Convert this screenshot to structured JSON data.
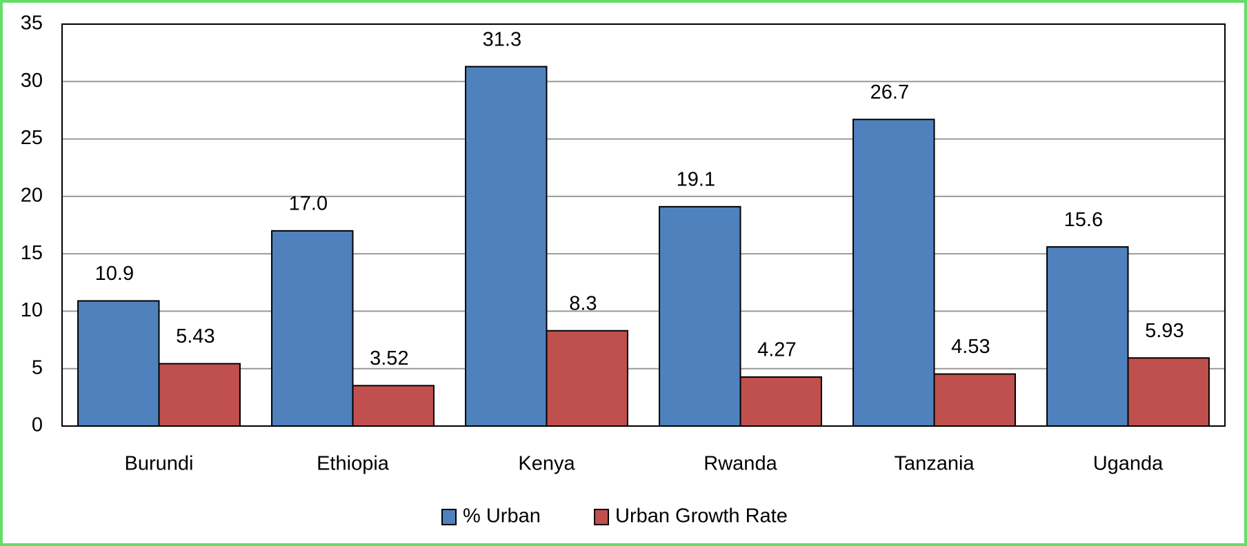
{
  "chart_data": {
    "type": "bar",
    "categories": [
      "Burundi",
      "Ethiopia",
      "Kenya",
      "Rwanda",
      "Tanzania",
      "Uganda"
    ],
    "series": [
      {
        "name": "% Urban",
        "color": "#4f81bd",
        "values": [
          10.9,
          17.0,
          31.3,
          19.1,
          26.7,
          15.6
        ],
        "value_labels": [
          "10.9",
          "17.0",
          "31.3",
          "19.1",
          "26.7",
          "15.6"
        ]
      },
      {
        "name": "Urban Growth Rate",
        "color": "#c0504d",
        "values": [
          5.43,
          3.52,
          8.3,
          4.27,
          4.53,
          5.93
        ]
      }
    ],
    "ylim": [
      0,
      35
    ],
    "yticks": [
      0,
      5,
      10,
      15,
      20,
      25,
      30,
      35
    ],
    "grid": true,
    "legend": "bottom"
  }
}
